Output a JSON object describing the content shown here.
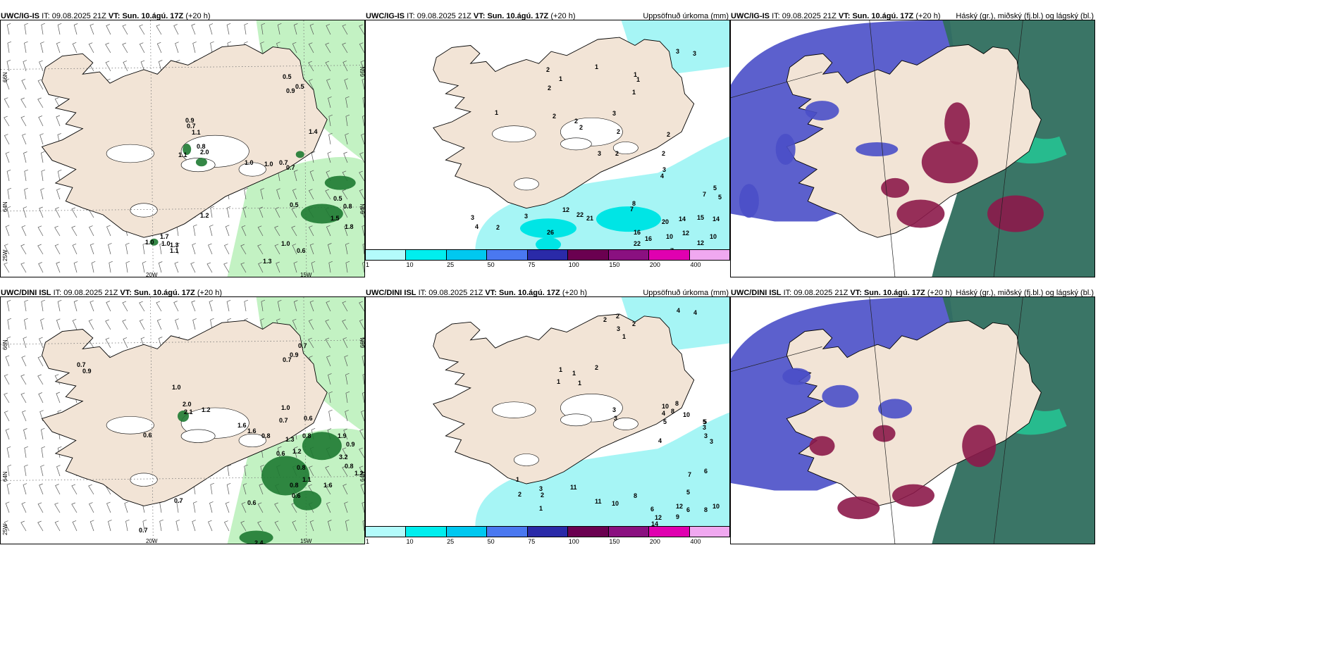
{
  "panels": [
    {
      "model": "UWC/IG-IS",
      "it_label": "IT:",
      "it_value": "09.08.2025 21Z",
      "vt_label": "VT:",
      "vt_value": "Sun. 10.ágú. 17Z",
      "lead": "(+20 h)",
      "right_title": "",
      "axis": {
        "lat66": "66N",
        "lat64": "64N",
        "lon20": "20W",
        "lon15": "15W",
        "lon25": "25W",
        "lat66r": "66N",
        "lat64r": "64N"
      },
      "values": [
        "0.5",
        "0.5",
        "0.9",
        "0.9",
        "0.7",
        "1.1",
        "0.8",
        "2.0",
        "1.1",
        "1.4",
        "1.0",
        "1.0",
        "0.7",
        "0.7",
        "0.5",
        "1.2",
        "1.0",
        "1.7",
        "1.0",
        "1.3",
        "1.1",
        "1.0",
        "0.6",
        "0.5",
        "1.3",
        "0.8",
        "1.5",
        "1.8"
      ]
    },
    {
      "model": "UWC/IG-IS",
      "it_label": "IT:",
      "it_value": "09.08.2025 21Z",
      "vt_label": "VT:",
      "vt_value": "Sun. 10.ágú. 17Z",
      "lead": "(+20 h)",
      "right_title": "Uppsöfnuð úrkoma (mm)",
      "values": [
        "3",
        "3",
        "2",
        "1",
        "2",
        "1",
        "1",
        "1",
        "2",
        "1",
        "2",
        "2",
        "3",
        "1",
        "2",
        "2",
        "2",
        "3",
        "2",
        "3",
        "4",
        "12",
        "22",
        "21",
        "20",
        "14",
        "15",
        "14",
        "10",
        "16",
        "16",
        "22",
        "21",
        "10",
        "12",
        "12",
        "7",
        "8",
        "7",
        "5",
        "5",
        "7",
        "26",
        "31",
        "3",
        "4",
        "3",
        "2"
      ]
    },
    {
      "model": "UWC/IG-IS",
      "it_label": "IT:",
      "it_value": "09.08.2025 21Z",
      "vt_label": "VT:",
      "vt_value": "Sun. 10.ágú. 17Z",
      "lead": "(+20 h)",
      "right_title": "Háský (gr.), miðský (fj.bl.) og lágský (bl.)"
    },
    {
      "model": "UWC/DINI ISL",
      "it_label": "IT:",
      "it_value": "09.08.2025 21Z",
      "vt_label": "VT:",
      "vt_value": "Sun. 10.ágú. 17Z",
      "lead": "(+20 h)",
      "right_title": "",
      "axis": {
        "lat66": "66N",
        "lat64": "64N",
        "lon20": "20W",
        "lon15": "15W",
        "lon25": "25W",
        "lat66r": "66N",
        "lat64r": "64N"
      },
      "values": [
        "0.7",
        "0.9",
        "0.7",
        "0.9",
        "0.7",
        "1.0",
        "2.0",
        "2.1",
        "1.2",
        "0.6",
        "1.6",
        "1.6",
        "0.8",
        "0.7",
        "1.0",
        "0.6",
        "0.8",
        "1.3",
        "1.2",
        "0.6",
        "0.8",
        "1.9",
        "0.9",
        "3.2",
        "0.8",
        "1.2",
        "1.1",
        "1.6",
        "0.8",
        "0.6",
        "0.6",
        "0.7",
        "0.7",
        "2.4"
      ]
    },
    {
      "model": "UWC/DINI ISL",
      "it_label": "IT:",
      "it_value": "09.08.2025 21Z",
      "vt_label": "VT:",
      "vt_value": "Sun. 10.ágú. 17Z",
      "lead": "(+20 h)",
      "right_title": "Uppsöfnuð úrkoma (mm)",
      "values": [
        "4",
        "4",
        "2",
        "2",
        "3",
        "2",
        "1",
        "1",
        "1",
        "2",
        "1",
        "1",
        "3",
        "3",
        "4",
        "5",
        "10",
        "8",
        "8",
        "10",
        "5",
        "3",
        "4",
        "11",
        "6",
        "7",
        "5",
        "10",
        "11",
        "10",
        "8",
        "6",
        "12",
        "14",
        "12",
        "9",
        "6",
        "8",
        "5",
        "3",
        "3",
        "1",
        "2",
        "3",
        "2",
        "1"
      ]
    },
    {
      "model": "UWC/DINI ISL",
      "it_label": "IT:",
      "it_value": "09.08.2025 21Z",
      "vt_label": "VT:",
      "vt_value": "Sun. 10.ágú. 17Z",
      "lead": "(+20 h)",
      "right_title": "Háský (gr.), miðský (fj.bl.) og lágský (bl.)"
    }
  ],
  "colorbar": {
    "labels": [
      "1",
      "10",
      "25",
      "50",
      "75",
      "100",
      "150",
      "200",
      "400"
    ],
    "colors": [
      "#b3fbfb",
      "#00eeee",
      "#00c8f0",
      "#4a78f0",
      "#2a2aa8",
      "#6a0050",
      "#8a1080",
      "#e000b0",
      "#f0a8f0"
    ]
  },
  "colors": {
    "land": "#f2e4d6",
    "precip_light": "#b8f0b8",
    "precip_dark": "#1e7a32",
    "accum": "#a6f5f5",
    "ocean_white": "#ffffff",
    "cloud_high": "#2f6e5e",
    "cloud_mid": "#4a4fc8",
    "cloud_low": "#8c1a4a"
  }
}
